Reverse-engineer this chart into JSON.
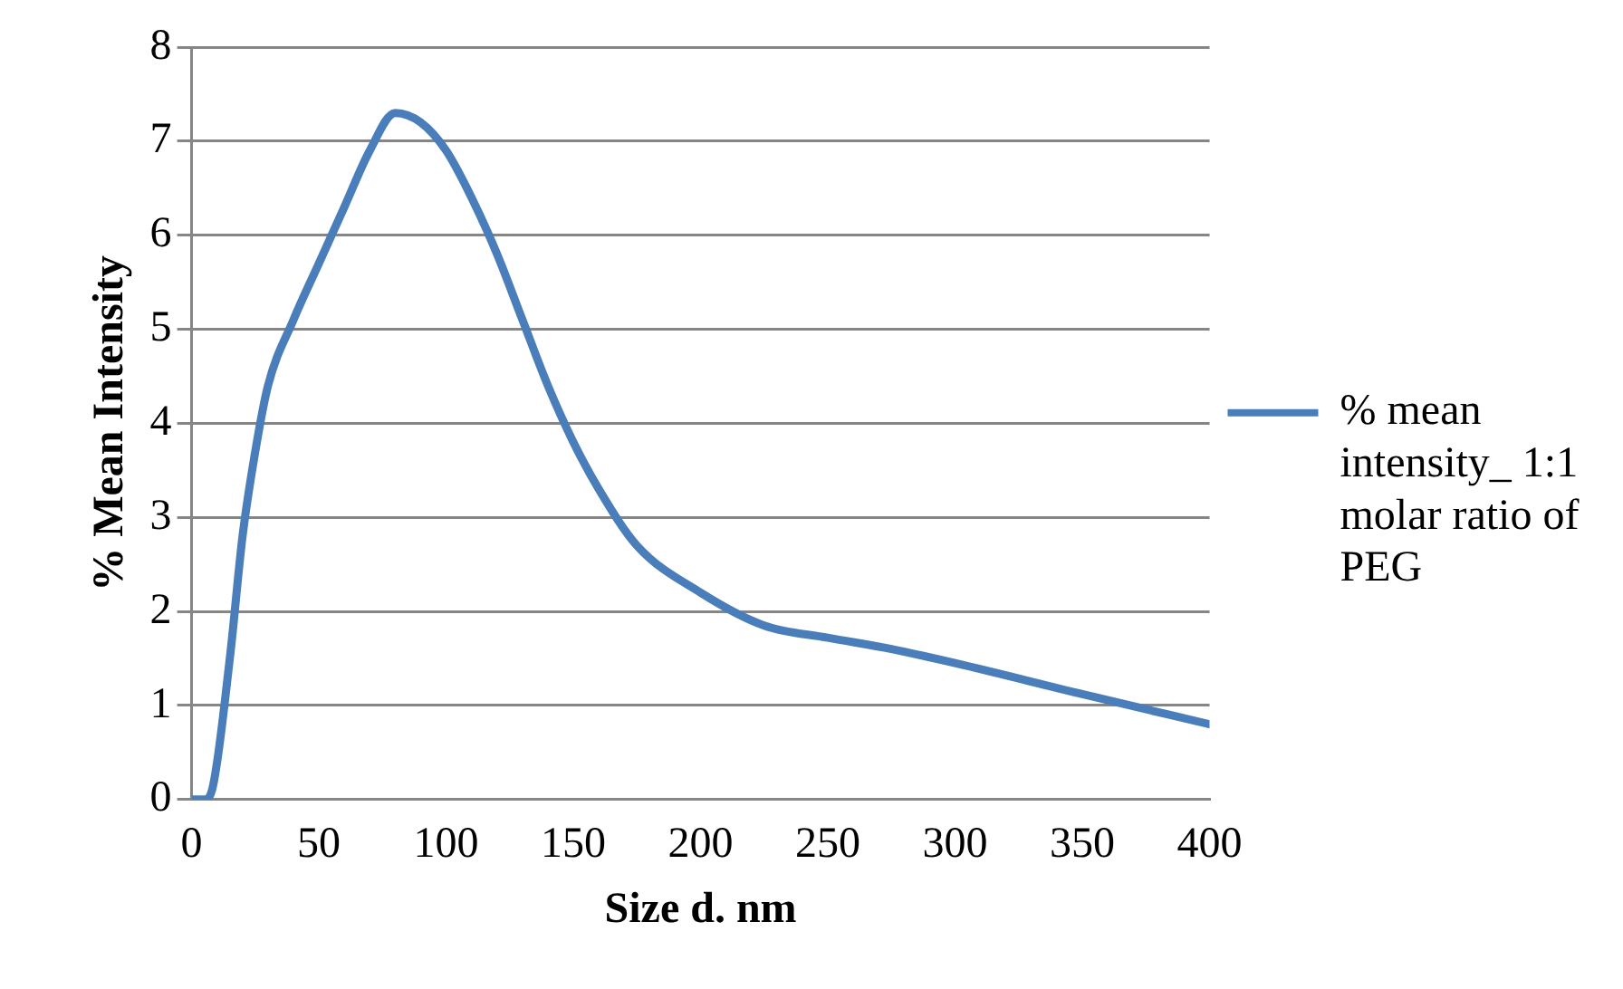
{
  "chart_data": {
    "type": "line",
    "xlabel": "Size d. nm",
    "ylabel": "% Mean Intensity",
    "xlim": [
      0,
      400
    ],
    "xticks": [
      0,
      50,
      100,
      150,
      200,
      250,
      300,
      350,
      400
    ],
    "ylim": [
      0,
      8
    ],
    "yticks": [
      0,
      1,
      2,
      3,
      4,
      5,
      6,
      7,
      8
    ],
    "grid": "y",
    "legend": "right",
    "marker": "none",
    "line_style": "solid",
    "series": [
      {
        "name": "% mean intensity_ 1:1 molar ratio of PEG",
        "color": "#4a7ebb",
        "x": [
          0,
          5,
          8,
          15,
          20,
          25,
          30,
          40,
          50,
          60,
          70,
          80,
          90,
          100,
          110,
          120,
          130,
          140,
          150,
          160,
          175,
          200,
          225,
          250,
          275,
          300,
          350,
          400
        ],
        "values": [
          0,
          0,
          0.1,
          1.5,
          2.8,
          3.7,
          4.4,
          5.1,
          5.7,
          6.3,
          6.9,
          7.3,
          7.2,
          6.9,
          6.4,
          5.8,
          5.1,
          4.4,
          3.8,
          3.3,
          2.7,
          2.2,
          1.85,
          1.72,
          1.6,
          1.45,
          1.12,
          0.8
        ]
      }
    ]
  }
}
